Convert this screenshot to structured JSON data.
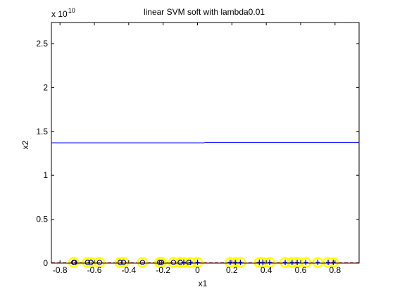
{
  "figure_title": "linear SVM soft with lambda0.01",
  "chart_data": {
    "type": "scatter",
    "title": "linear SVM soft with lambda0.01",
    "xlabel": "x1",
    "ylabel": "x2",
    "y_multiplier_label": "x 10",
    "y_multiplier_exponent": "10",
    "xlim": [
      -0.85,
      0.94
    ],
    "ylim": [
      0,
      2.74
    ],
    "xticks": [
      -0.8,
      -0.6,
      -0.4,
      -0.2,
      0,
      0.2,
      0.4,
      0.6,
      0.8
    ],
    "xtick_labels": [
      "-0.8",
      "-0.6",
      "-0.4",
      "-0.2",
      "0",
      "0.2",
      "0.4",
      "0.6",
      "0.8"
    ],
    "yticks": [
      0,
      0.5,
      1,
      1.5,
      2,
      2.5
    ],
    "ytick_labels": [
      "0",
      "0.5",
      "1",
      "1.5",
      "2",
      "2.5"
    ],
    "grid": false,
    "legend": "none",
    "decision_boundary": {
      "color": "#0000ff",
      "segments": [
        {
          "x": [
            -0.85,
            0.04
          ],
          "y": [
            1.37,
            1.37
          ]
        },
        {
          "x": [
            0.04,
            0.94
          ],
          "y": [
            1.375,
            1.375
          ]
        }
      ]
    },
    "baseline": {
      "color": "#cc0000",
      "style": "dashed",
      "y": 0
    },
    "series": [
      {
        "marker": "o",
        "color": "#000080",
        "x": [
          -0.72,
          -0.715,
          -0.64,
          -0.62,
          -0.57,
          -0.45,
          -0.43,
          -0.32,
          -0.22,
          -0.21,
          -0.14,
          -0.1,
          -0.05
        ],
        "y": [
          0,
          0,
          0,
          0,
          0,
          0,
          0,
          0,
          0,
          0,
          0,
          0,
          0
        ]
      },
      {
        "marker": "+",
        "color": "#0000ff",
        "x": [
          -0.08,
          -0.04,
          0.0,
          0.19,
          0.22,
          0.25,
          0.36,
          0.38,
          0.42,
          0.51,
          0.55,
          0.58,
          0.63,
          0.7,
          0.76,
          0.79
        ],
        "y": [
          0,
          0,
          0,
          0,
          0,
          0,
          0,
          0,
          0,
          0,
          0,
          0,
          0,
          0,
          0,
          0
        ]
      }
    ],
    "support_vectors": {
      "marker": "circle",
      "color": "#ffff00",
      "x": [
        -0.72,
        -0.64,
        -0.62,
        -0.57,
        -0.45,
        -0.43,
        -0.32,
        -0.22,
        -0.21,
        -0.14,
        -0.1,
        -0.08,
        -0.04,
        0.0,
        0.19,
        0.22,
        0.25,
        0.36,
        0.38,
        0.42,
        0.51,
        0.55,
        0.58,
        0.63,
        0.7,
        0.76,
        0.79
      ],
      "y": [
        0,
        0,
        0,
        0,
        0,
        0,
        0,
        0,
        0,
        0,
        0,
        0,
        0,
        0,
        0,
        0,
        0,
        0,
        0,
        0,
        0,
        0,
        0,
        0,
        0,
        0,
        0
      ]
    }
  }
}
